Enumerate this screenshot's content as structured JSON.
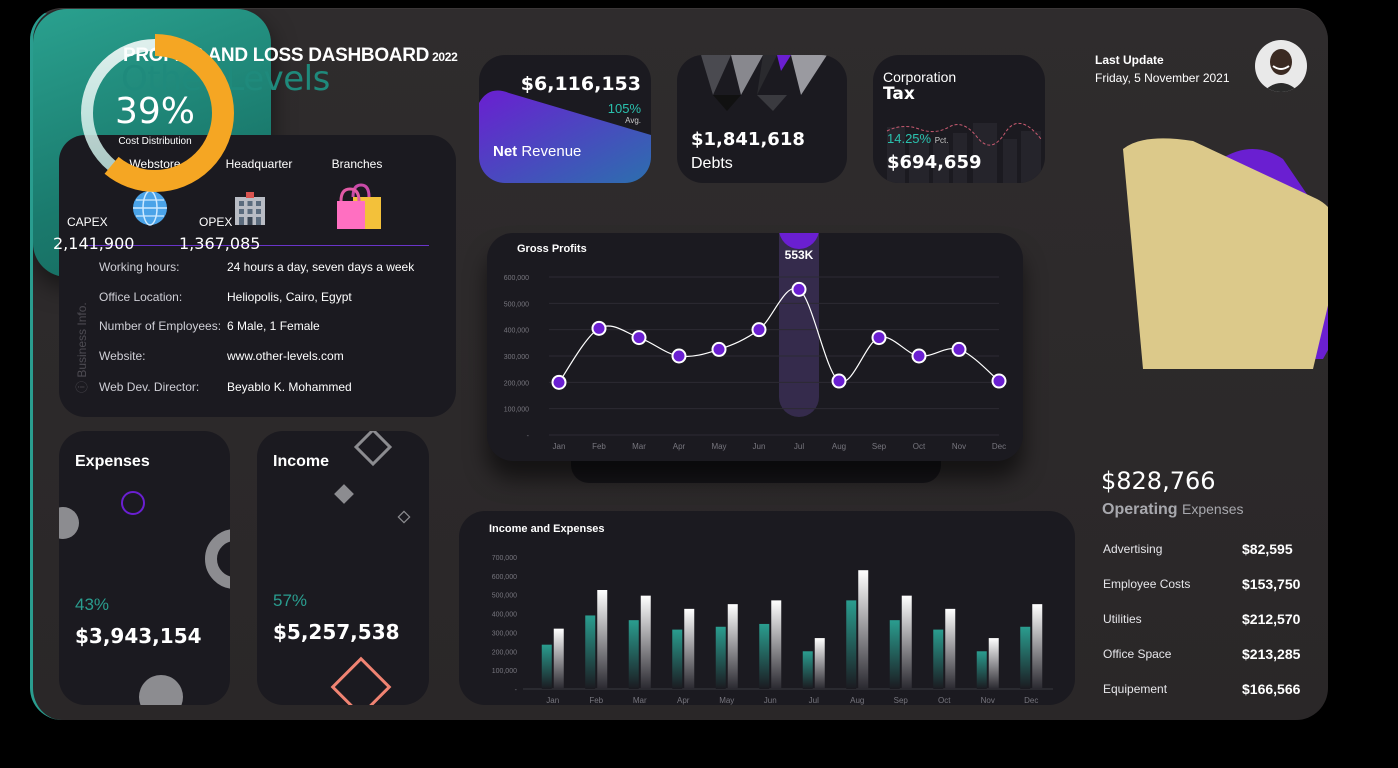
{
  "header": {
    "title": "PROFITS AND LOSS DASHBOARD",
    "year": "2022",
    "subtitle": "Other Levels"
  },
  "last_update": {
    "label": "Last Update",
    "date": "Friday, 5 November 2021"
  },
  "business_info": {
    "vertical_label": "Business Info.",
    "columns": [
      "Webstore",
      "Headquarter",
      "Branches"
    ],
    "rows": [
      {
        "label": "Working hours:",
        "value": "24 hours a day, seven days a week"
      },
      {
        "label": "Office Location:",
        "value": "Heliopolis, Cairo, Egypt"
      },
      {
        "label": "Number of Employees:",
        "value": "6 Male, 1 Female"
      },
      {
        "label": "Website:",
        "value": "www.other-levels.com"
      },
      {
        "label": "Web Dev. Director:",
        "value": "Beyablo K. Mohammed"
      }
    ]
  },
  "kpis": {
    "net_revenue": {
      "value": "$6,116,153",
      "pct": "105%",
      "pct_label": "Avg.",
      "label_bold": "Net",
      "label": "Revenue"
    },
    "debts": {
      "value": "$1,841,618",
      "label": "Debts"
    },
    "tax": {
      "label1": "Corporation",
      "label2": "Tax",
      "pct": "14.25%",
      "pct_label": "Pct.",
      "value": "$694,659"
    }
  },
  "expenses": {
    "label": "Expenses",
    "pct": "43%",
    "value": "$3,943,154"
  },
  "income": {
    "label": "Income",
    "pct": "57%",
    "value": "$5,257,538"
  },
  "cost_distribution": {
    "percent": 39,
    "percent_label": "39%",
    "label": "Cost Distribution",
    "capex_label": "CAPEX",
    "capex_value": "2,141,900",
    "opex_label": "OPEX",
    "opex_value": "1,367,085"
  },
  "operating": {
    "total": "$828,766",
    "label_bold": "Operating",
    "label": "Expenses",
    "items": [
      {
        "label": "Advertising",
        "value": "$82,595"
      },
      {
        "label": "Employee Costs",
        "value": "$153,750"
      },
      {
        "label": "Utilities",
        "value": "$212,570"
      },
      {
        "label": "Office Space",
        "value": "$213,285"
      },
      {
        "label": "Equipement",
        "value": "$166,566"
      }
    ]
  },
  "colors": {
    "accent": "#2a9d8f",
    "purple": "#6a1fd1",
    "orange": "#f5a623",
    "card": "#1b1a20"
  },
  "chart_data": [
    {
      "type": "line",
      "title": "Gross Profits",
      "categories": [
        "Jan",
        "Feb",
        "Mar",
        "Apr",
        "May",
        "Jun",
        "Jul",
        "Aug",
        "Sep",
        "Oct",
        "Nov",
        "Dec"
      ],
      "values": [
        200000,
        405000,
        370000,
        300000,
        325000,
        400000,
        553000,
        205000,
        370000,
        300000,
        325000,
        205000
      ],
      "y_ticks": [
        "-",
        "100,000",
        "200,000",
        "300,000",
        "400,000",
        "500,000",
        "600,000"
      ],
      "ylim": [
        0,
        600000
      ],
      "highlight": {
        "category": "Jul",
        "label": "553K"
      },
      "grid": true
    },
    {
      "type": "bar",
      "title": "Income and Expenses",
      "categories": [
        "Jan",
        "Feb",
        "Mar",
        "Apr",
        "May",
        "Jun",
        "Jul",
        "Aug",
        "Sep",
        "Oct",
        "Nov",
        "Dec"
      ],
      "series": [
        {
          "values": [
            235000,
            390000,
            365000,
            315000,
            330000,
            345000,
            200000,
            470000,
            365000,
            315000,
            200000,
            330000
          ]
        },
        {
          "values": [
            320000,
            525000,
            495000,
            425000,
            450000,
            470000,
            270000,
            630000,
            495000,
            425000,
            270000,
            450000
          ]
        }
      ],
      "y_ticks": [
        "-",
        "100,000",
        "200,000",
        "300,000",
        "400,000",
        "500,000",
        "600,000",
        "700,000"
      ],
      "ylim": [
        0,
        700000
      ],
      "grid": false
    }
  ]
}
